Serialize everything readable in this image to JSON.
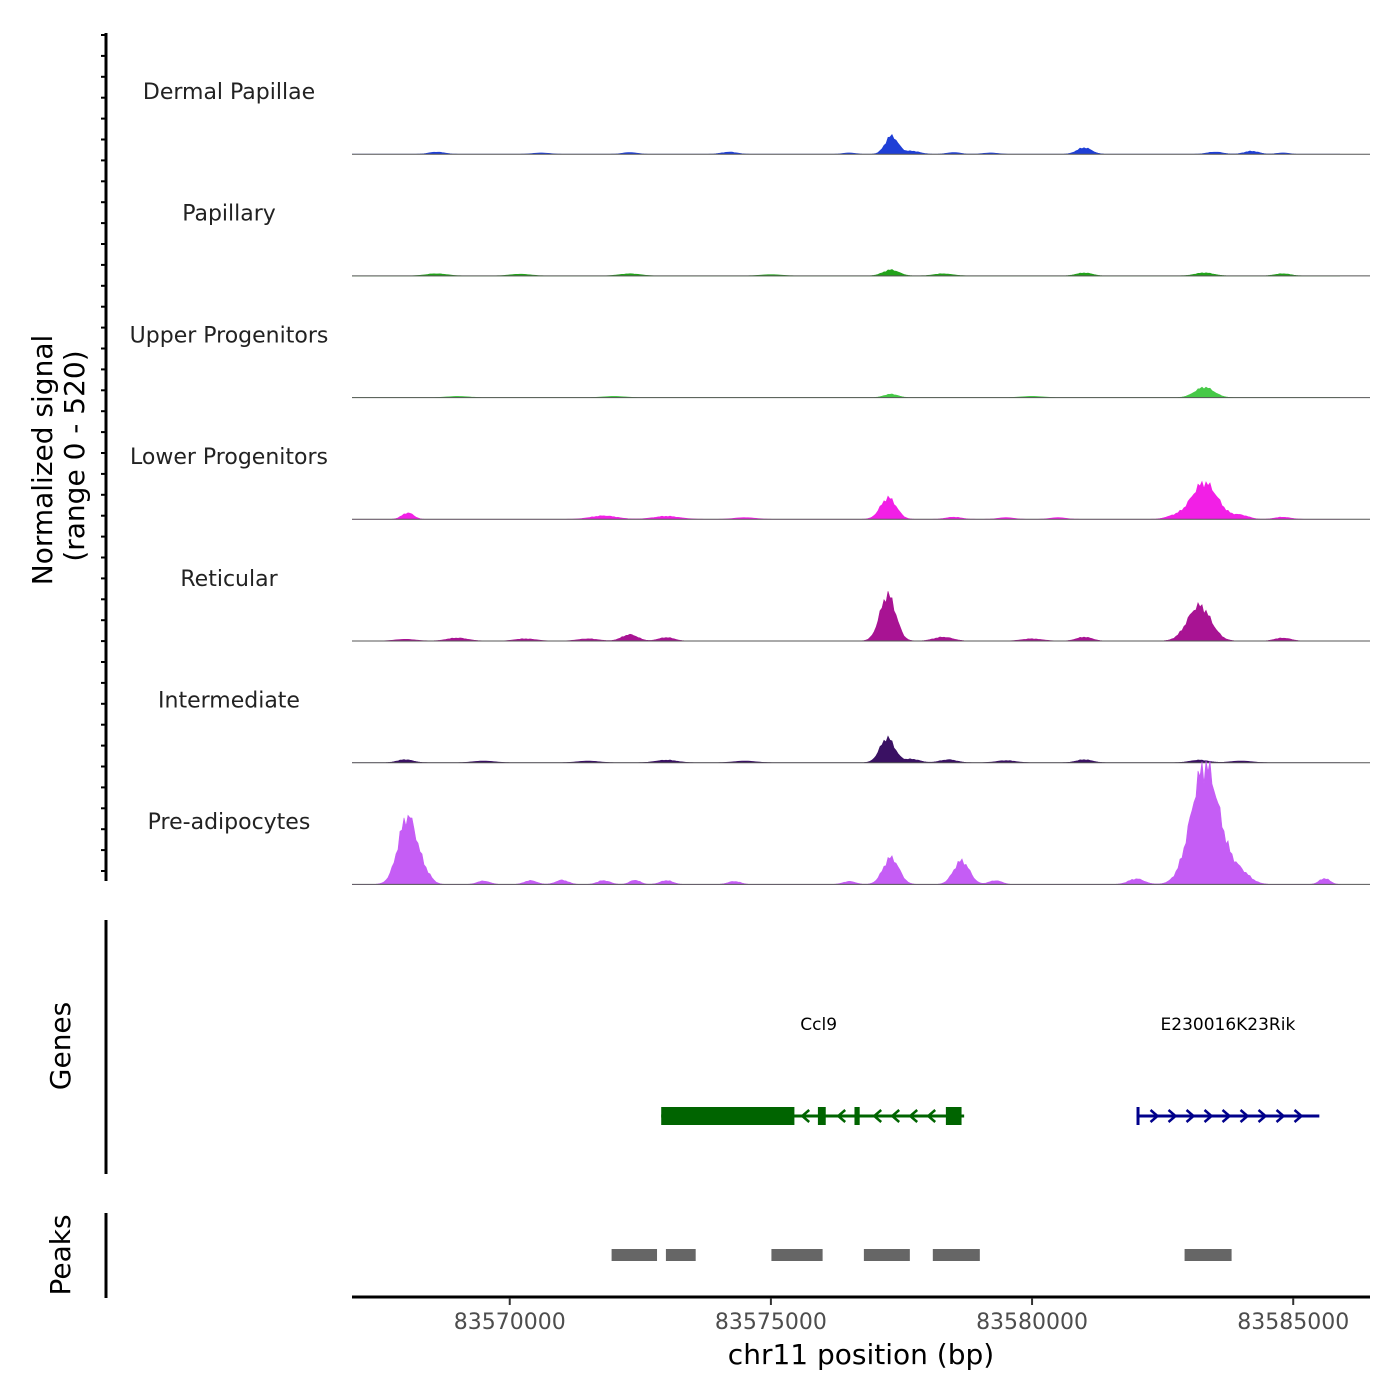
{
  "chart_data": {
    "type": "area",
    "title": "",
    "xlabel": "chr11 position (bp)",
    "ylabel": "Normalized signal",
    "ylabel_range": "(range 0 - 520)",
    "ylim": [
      0,
      520
    ],
    "xlim": [
      83566980,
      83586470
    ],
    "x_ticks": [
      83570000,
      83575000,
      83580000,
      83585000
    ],
    "x_tick_labels": [
      "83570000",
      "83575000",
      "83580000",
      "83585000"
    ],
    "tracks": [
      {
        "name": "Dermal Papillae",
        "color": "#1f3fd6",
        "peaks": [
          [
            83568600,
            10,
            150
          ],
          [
            83570600,
            6,
            160
          ],
          [
            83572300,
            8,
            140
          ],
          [
            83574200,
            10,
            150
          ],
          [
            83576500,
            6,
            120
          ],
          [
            83577310,
            85,
            120
          ],
          [
            83577700,
            14,
            150
          ],
          [
            83578500,
            8,
            130
          ],
          [
            83579200,
            6,
            140
          ],
          [
            83581000,
            30,
            140
          ],
          [
            83583500,
            10,
            150
          ],
          [
            83584200,
            14,
            140
          ],
          [
            83584800,
            6,
            120
          ]
        ]
      },
      {
        "name": "Papillary",
        "color": "#22a31a",
        "peaks": [
          [
            83568600,
            10,
            200
          ],
          [
            83570200,
            8,
            200
          ],
          [
            83572300,
            10,
            200
          ],
          [
            83575000,
            6,
            200
          ],
          [
            83577300,
            28,
            150
          ],
          [
            83578300,
            10,
            180
          ],
          [
            83581000,
            14,
            150
          ],
          [
            83583300,
            14,
            180
          ],
          [
            83584800,
            10,
            150
          ]
        ]
      },
      {
        "name": "Upper Progenitors",
        "color": "#47c948",
        "peaks": [
          [
            83569000,
            6,
            200
          ],
          [
            83572000,
            6,
            200
          ],
          [
            83577300,
            16,
            130
          ],
          [
            83580000,
            6,
            200
          ],
          [
            83583300,
            48,
            180
          ]
        ]
      },
      {
        "name": "Lower Progenitors",
        "color": "#f21fe6",
        "peaks": [
          [
            83568050,
            30,
            110
          ],
          [
            83571800,
            16,
            250
          ],
          [
            83573000,
            14,
            250
          ],
          [
            83574500,
            8,
            200
          ],
          [
            83577250,
            100,
            150
          ],
          [
            83578500,
            10,
            150
          ],
          [
            83579500,
            8,
            150
          ],
          [
            83580500,
            8,
            150
          ],
          [
            83582700,
            12,
            150
          ],
          [
            83583300,
            170,
            250
          ],
          [
            83584000,
            18,
            150
          ],
          [
            83584800,
            10,
            150
          ]
        ]
      },
      {
        "name": "Reticular",
        "color": "#a81393",
        "peaks": [
          [
            83568000,
            8,
            200
          ],
          [
            83569000,
            14,
            200
          ],
          [
            83570300,
            10,
            200
          ],
          [
            83571500,
            10,
            200
          ],
          [
            83572300,
            30,
            150
          ],
          [
            83573000,
            16,
            150
          ],
          [
            83577240,
            215,
            150
          ],
          [
            83578300,
            18,
            180
          ],
          [
            83580000,
            10,
            200
          ],
          [
            83581000,
            18,
            150
          ],
          [
            83583200,
            165,
            220
          ],
          [
            83584800,
            14,
            150
          ]
        ]
      },
      {
        "name": "Intermediate",
        "color": "#3a1163",
        "peaks": [
          [
            83568000,
            14,
            150
          ],
          [
            83569500,
            8,
            200
          ],
          [
            83571500,
            8,
            200
          ],
          [
            83573000,
            12,
            200
          ],
          [
            83574500,
            8,
            200
          ],
          [
            83577230,
            115,
            140
          ],
          [
            83577700,
            16,
            150
          ],
          [
            83578400,
            14,
            160
          ],
          [
            83579500,
            10,
            180
          ],
          [
            83581000,
            14,
            150
          ],
          [
            83583200,
            12,
            180
          ],
          [
            83584000,
            8,
            200
          ]
        ]
      },
      {
        "name": "Pre-adipocytes",
        "color": "#c55df5",
        "peaks": [
          [
            83568050,
            320,
            180
          ],
          [
            83568400,
            30,
            120
          ],
          [
            83569500,
            16,
            120
          ],
          [
            83570400,
            18,
            120
          ],
          [
            83571000,
            20,
            120
          ],
          [
            83571800,
            18,
            120
          ],
          [
            83572400,
            20,
            100
          ],
          [
            83573000,
            18,
            120
          ],
          [
            83574300,
            14,
            120
          ],
          [
            83576500,
            14,
            120
          ],
          [
            83577300,
            125,
            150
          ],
          [
            83578650,
            110,
            150
          ],
          [
            83579300,
            18,
            120
          ],
          [
            83582000,
            26,
            150
          ],
          [
            83583300,
            520,
            260
          ],
          [
            83583600,
            60,
            300
          ],
          [
            83584000,
            40,
            180
          ],
          [
            83585600,
            28,
            100
          ]
        ]
      }
    ],
    "genes": [
      {
        "name": "Ccl9",
        "start": 83572900,
        "end": 83578700,
        "strand": "-",
        "color": "#006400",
        "exons": [
          [
            83572900,
            83575450
          ],
          [
            83575900,
            83576050
          ],
          [
            83576600,
            83576700
          ],
          [
            83578350,
            83578650
          ]
        ]
      },
      {
        "name": "E230016K23Rik",
        "start": 83582000,
        "end": 83585500,
        "strand": "+",
        "color": "#00008b",
        "exons": [
          [
            83582000,
            83582050
          ]
        ]
      }
    ],
    "peak_regions": [
      [
        83571950,
        83572820
      ],
      [
        83572990,
        83573560
      ],
      [
        83575010,
        83575990
      ],
      [
        83576780,
        83577660
      ],
      [
        83578100,
        83579000
      ],
      [
        83582920,
        83583820
      ]
    ],
    "panel_labels": {
      "genes": "Genes",
      "peaks": "Peaks"
    }
  }
}
